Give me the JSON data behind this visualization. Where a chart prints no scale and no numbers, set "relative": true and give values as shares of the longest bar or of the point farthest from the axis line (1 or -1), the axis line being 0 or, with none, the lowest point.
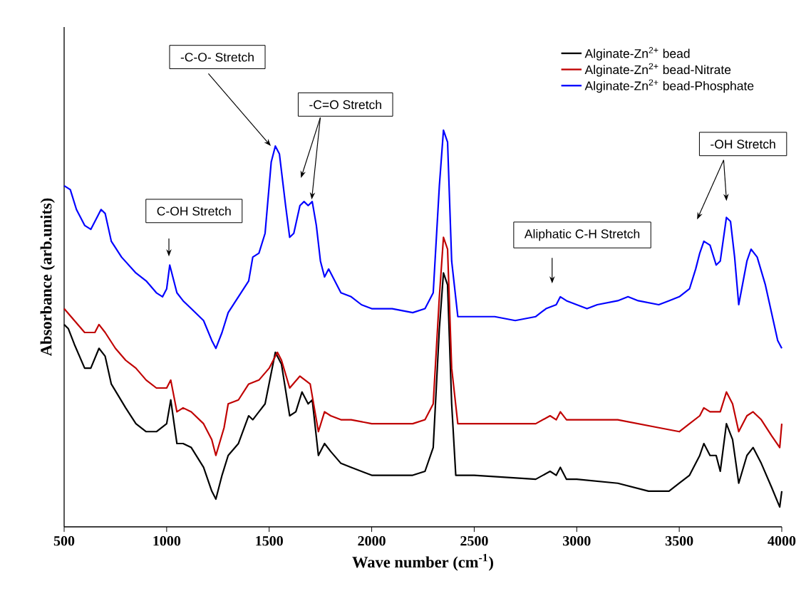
{
  "chart_data": {
    "type": "line",
    "relative": true,
    "xlabel": "Wave number (cm$^{-1}$)",
    "ylabel": "Absorbance (arb.units)",
    "xlim": [
      500,
      4000
    ],
    "xticks": [
      500,
      1000,
      1500,
      2000,
      2500,
      3000,
      3500,
      4000
    ],
    "grid": false,
    "legend": "top right",
    "marker": "none",
    "line_style": "solid",
    "tick_labels": "x",
    "series": [
      {
        "name": "Alginate-Zn$^{2+}$ bead",
        "color": "#000000",
        "x": [
          500,
          520,
          550,
          600,
          630,
          670,
          700,
          730,
          800,
          850,
          900,
          950,
          1000,
          1020,
          1050,
          1080,
          1120,
          1180,
          1220,
          1240,
          1270,
          1300,
          1350,
          1400,
          1420,
          1450,
          1480,
          1530,
          1560,
          1600,
          1630,
          1660,
          1690,
          1710,
          1740,
          1770,
          1800,
          1850,
          1900,
          2000,
          2200,
          2260,
          2300,
          2330,
          2350,
          2370,
          2390,
          2410,
          2500,
          2800,
          2870,
          2900,
          2920,
          2950,
          3000,
          3200,
          3350,
          3450,
          3500,
          3550,
          3600,
          3620,
          3650,
          3680,
          3700,
          3730,
          3760,
          3790,
          3830,
          3860,
          3900,
          3950,
          3990,
          4000
        ],
        "values": [
          0.51,
          0.5,
          0.46,
          0.4,
          0.4,
          0.45,
          0.43,
          0.36,
          0.3,
          0.26,
          0.24,
          0.24,
          0.26,
          0.32,
          0.21,
          0.21,
          0.2,
          0.15,
          0.09,
          0.07,
          0.13,
          0.18,
          0.21,
          0.28,
          0.27,
          0.29,
          0.31,
          0.44,
          0.41,
          0.28,
          0.29,
          0.34,
          0.31,
          0.32,
          0.18,
          0.21,
          0.19,
          0.16,
          0.15,
          0.13,
          0.13,
          0.14,
          0.2,
          0.5,
          0.64,
          0.61,
          0.31,
          0.13,
          0.13,
          0.12,
          0.14,
          0.13,
          0.15,
          0.12,
          0.12,
          0.11,
          0.09,
          0.09,
          0.11,
          0.13,
          0.18,
          0.21,
          0.18,
          0.18,
          0.14,
          0.26,
          0.22,
          0.11,
          0.18,
          0.2,
          0.16,
          0.1,
          0.05,
          0.09
        ]
      },
      {
        "name": "Alginate-Zn$^{2+}$ bead-Nitrate",
        "color": "#c00000",
        "x": [
          500,
          550,
          600,
          650,
          670,
          700,
          750,
          800,
          850,
          900,
          950,
          1000,
          1020,
          1050,
          1080,
          1120,
          1180,
          1220,
          1240,
          1280,
          1300,
          1350,
          1400,
          1450,
          1500,
          1540,
          1560,
          1600,
          1650,
          1700,
          1740,
          1770,
          1800,
          1850,
          1900,
          2000,
          2200,
          2260,
          2300,
          2330,
          2350,
          2370,
          2390,
          2420,
          2500,
          2800,
          2870,
          2900,
          2920,
          2950,
          3000,
          3200,
          3400,
          3500,
          3550,
          3600,
          3620,
          3650,
          3700,
          3730,
          3760,
          3790,
          3830,
          3860,
          3900,
          3950,
          3990,
          4000
        ],
        "values": [
          0.55,
          0.52,
          0.49,
          0.49,
          0.51,
          0.49,
          0.45,
          0.42,
          0.4,
          0.37,
          0.35,
          0.35,
          0.37,
          0.29,
          0.3,
          0.29,
          0.26,
          0.22,
          0.18,
          0.25,
          0.31,
          0.32,
          0.36,
          0.37,
          0.4,
          0.44,
          0.42,
          0.35,
          0.38,
          0.36,
          0.24,
          0.29,
          0.28,
          0.27,
          0.27,
          0.26,
          0.26,
          0.27,
          0.31,
          0.58,
          0.73,
          0.7,
          0.4,
          0.26,
          0.26,
          0.26,
          0.28,
          0.27,
          0.29,
          0.27,
          0.27,
          0.27,
          0.25,
          0.24,
          0.26,
          0.28,
          0.3,
          0.29,
          0.29,
          0.34,
          0.31,
          0.24,
          0.28,
          0.29,
          0.27,
          0.23,
          0.2,
          0.26
        ]
      },
      {
        "name": "Alginate-Zn$^{2+}$ bead-Phosphate",
        "color": "#0000ff",
        "x": [
          500,
          530,
          560,
          600,
          630,
          660,
          680,
          700,
          730,
          780,
          850,
          900,
          950,
          980,
          1000,
          1015,
          1050,
          1080,
          1120,
          1180,
          1220,
          1240,
          1270,
          1300,
          1350,
          1400,
          1420,
          1450,
          1480,
          1510,
          1530,
          1550,
          1580,
          1600,
          1620,
          1650,
          1670,
          1690,
          1710,
          1730,
          1750,
          1770,
          1790,
          1820,
          1850,
          1900,
          1950,
          2000,
          2100,
          2200,
          2260,
          2300,
          2330,
          2350,
          2370,
          2390,
          2420,
          2500,
          2600,
          2700,
          2800,
          2850,
          2900,
          2920,
          2950,
          3000,
          3050,
          3100,
          3200,
          3250,
          3300,
          3400,
          3450,
          3500,
          3550,
          3580,
          3600,
          3620,
          3650,
          3680,
          3700,
          3730,
          3750,
          3770,
          3790,
          3830,
          3850,
          3880,
          3920,
          3950,
          3980,
          4000
        ],
        "values": [
          0.86,
          0.85,
          0.8,
          0.76,
          0.75,
          0.78,
          0.8,
          0.79,
          0.72,
          0.68,
          0.64,
          0.62,
          0.59,
          0.58,
          0.6,
          0.66,
          0.59,
          0.57,
          0.55,
          0.52,
          0.47,
          0.45,
          0.49,
          0.54,
          0.58,
          0.62,
          0.68,
          0.69,
          0.74,
          0.92,
          0.96,
          0.94,
          0.81,
          0.73,
          0.74,
          0.81,
          0.82,
          0.81,
          0.82,
          0.76,
          0.67,
          0.63,
          0.65,
          0.62,
          0.59,
          0.58,
          0.56,
          0.55,
          0.55,
          0.54,
          0.55,
          0.59,
          0.86,
          1.0,
          0.97,
          0.67,
          0.53,
          0.53,
          0.53,
          0.52,
          0.53,
          0.55,
          0.56,
          0.58,
          0.57,
          0.56,
          0.55,
          0.56,
          0.57,
          0.58,
          0.57,
          0.56,
          0.57,
          0.58,
          0.6,
          0.65,
          0.69,
          0.72,
          0.71,
          0.66,
          0.67,
          0.78,
          0.77,
          0.68,
          0.56,
          0.67,
          0.7,
          0.68,
          0.61,
          0.54,
          0.47,
          0.45
        ]
      }
    ],
    "annotations": [
      "C-OH Stretch",
      "-C-O- Stretch",
      "-C=O Stretch",
      "Aliphatic C-H Stretch",
      "-OH Stretch"
    ]
  }
}
